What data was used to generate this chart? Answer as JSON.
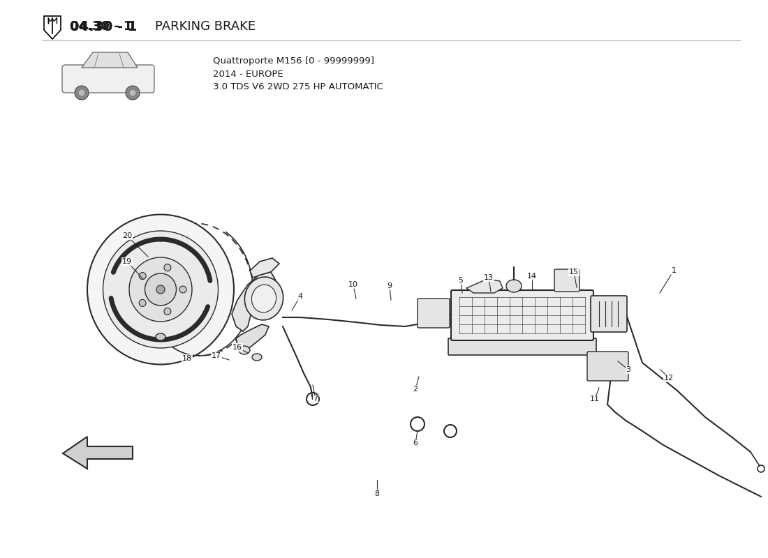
{
  "title_bold": "04.30 - 1",
  "title_text": " PARKING BRAKE",
  "model_line1": "Quattroporte M156 [0 - 99999999]",
  "model_line2": "2014 - EUROPE",
  "model_line3": "3.0 TDS V6 2WD 275 HP AUTOMATIC",
  "bg_color": "#ffffff",
  "text_color": "#1a1a1a",
  "line_color": "#2a2a2a"
}
